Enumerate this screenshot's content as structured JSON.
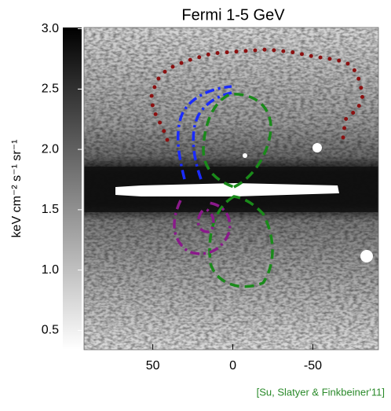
{
  "chart_data": {
    "type": "image-map",
    "title": "Fermi 1-5 GeV",
    "y_label": "keV cm⁻² s⁻¹ sr⁻¹",
    "xlim": [
      93,
      -91
    ],
    "xticks": [
      50,
      0,
      -50
    ],
    "ylim": [
      0.34,
      3.01
    ],
    "yticks": [
      0.5,
      {
        "value": 1,
        "label": "1.0"
      },
      1.5,
      {
        "value": 2,
        "label": "2.0"
      },
      2.5,
      {
        "value": 3,
        "label": "3.0"
      }
    ],
    "colormap": [
      "#ffffff",
      "#000000"
    ],
    "credit": "[Su, Slatyer & Finkbeiner'11]"
  }
}
